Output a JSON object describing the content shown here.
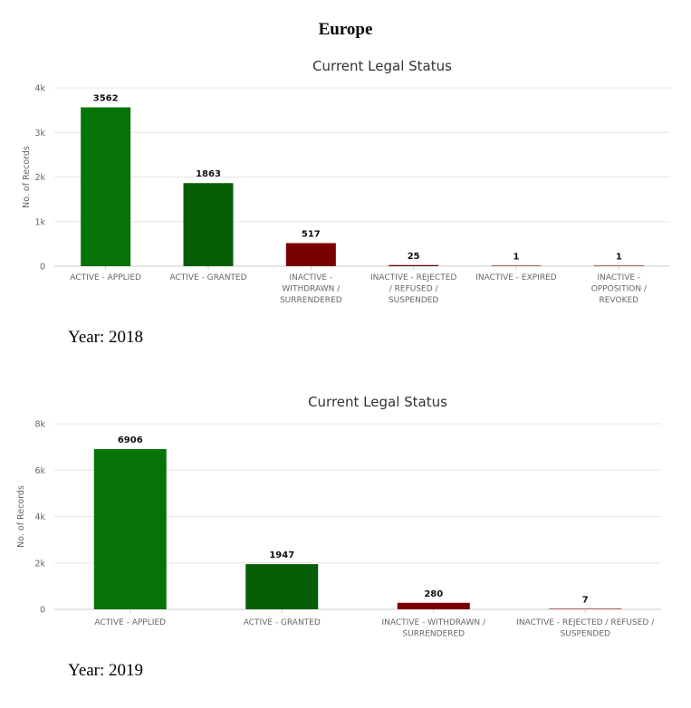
{
  "page_title": "Europe",
  "chart_data": [
    {
      "type": "bar",
      "title": "Current Legal Status",
      "ylabel": "No. of Records",
      "ylim": [
        0,
        4000
      ],
      "yticks": [
        "0",
        "1k",
        "2k",
        "3k",
        "4k"
      ],
      "ytick_values": [
        0,
        1000,
        2000,
        3000,
        4000
      ],
      "categories": [
        "ACTIVE - APPLIED",
        "ACTIVE - GRANTED",
        "INACTIVE - WITHDRAWN / SURRENDERED",
        "INACTIVE - REJECTED / REFUSED / SUSPENDED",
        "INACTIVE - EXPIRED",
        "INACTIVE - OPPOSITION / REVOKED"
      ],
      "category_lines": [
        [
          "ACTIVE - APPLIED"
        ],
        [
          "ACTIVE - GRANTED"
        ],
        [
          "INACTIVE -",
          "WITHDRAWN /",
          "SURRENDERED"
        ],
        [
          "INACTIVE - REJECTED",
          "/ REFUSED /",
          "SUSPENDED"
        ],
        [
          "INACTIVE - EXPIRED"
        ],
        [
          "INACTIVE -",
          "OPPOSITION /",
          "REVOKED"
        ]
      ],
      "values": [
        3562,
        1863,
        517,
        25,
        1,
        1
      ],
      "colors": [
        "#067306",
        "#055e05",
        "#7a0000",
        "#7a0000",
        "#7a0000",
        "#7a0000"
      ],
      "grid": true,
      "caption": "Year: 2018"
    },
    {
      "type": "bar",
      "title": "Current Legal Status",
      "ylabel": "No. of Records",
      "ylim": [
        0,
        8000
      ],
      "yticks": [
        "0",
        "2k",
        "4k",
        "6k",
        "8k"
      ],
      "ytick_values": [
        0,
        2000,
        4000,
        6000,
        8000
      ],
      "categories": [
        "ACTIVE - APPLIED",
        "ACTIVE - GRANTED",
        "INACTIVE - WITHDRAWN / SURRENDERED",
        "INACTIVE - REJECTED / REFUSED / SUSPENDED"
      ],
      "category_lines": [
        [
          "ACTIVE - APPLIED"
        ],
        [
          "ACTIVE - GRANTED"
        ],
        [
          "INACTIVE - WITHDRAWN /",
          "SURRENDERED"
        ],
        [
          "INACTIVE - REJECTED / REFUSED /",
          "SUSPENDED"
        ]
      ],
      "values": [
        6906,
        1947,
        280,
        7
      ],
      "colors": [
        "#067306",
        "#055e05",
        "#7a0000",
        "#7a0000"
      ],
      "grid": true,
      "caption": "Year: 2019"
    }
  ]
}
